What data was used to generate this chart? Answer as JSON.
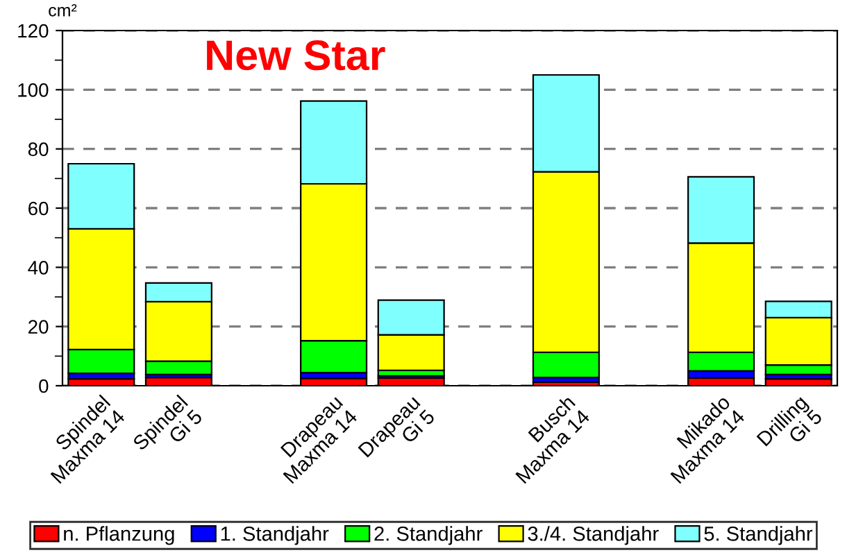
{
  "chart_data": {
    "type": "bar",
    "stacked": true,
    "ylabel": "cm²",
    "annotations": [
      "New Star"
    ],
    "categories": [
      "Spindel\nMaxma 14",
      "Spindel\nGi 5",
      null,
      "Drapeau\nMaxma 14",
      "Drapeau\nGi 5",
      null,
      "Busch\nMaxma 14",
      null,
      "Mikado\nMaxma 14",
      "Drilling\nGi 5"
    ],
    "series": [
      {
        "name": "n. Pflanzung",
        "color": "#ff0000",
        "values": [
          2.3,
          2.8,
          null,
          2.5,
          2.6,
          null,
          1.2,
          null,
          2.6,
          2.3
        ]
      },
      {
        "name": "1. Standjahr",
        "color": "#0000ff",
        "values": [
          1.9,
          1.0,
          null,
          1.9,
          0.7,
          null,
          1.6,
          null,
          2.4,
          1.5
        ]
      },
      {
        "name": "2. Standjahr",
        "color": "#00ff00",
        "values": [
          8.0,
          4.5,
          null,
          10.8,
          1.9,
          null,
          8.5,
          null,
          6.3,
          3.2
        ]
      },
      {
        "name": "3./4. Standjahr",
        "color": "#ffff00",
        "values": [
          40.8,
          20.1,
          null,
          53.0,
          12.0,
          null,
          61.0,
          null,
          36.9,
          16.0
        ]
      },
      {
        "name": "5. Standjahr",
        "color": "#80ffff",
        "values": [
          22.0,
          6.3,
          null,
          28.0,
          11.7,
          null,
          32.7,
          null,
          22.4,
          5.5
        ]
      }
    ],
    "ylim": [
      0,
      120
    ],
    "yticks": [
      0,
      {
        "value": 10,
        "label": null
      },
      20,
      {
        "value": 30,
        "label": null
      },
      40,
      {
        "value": 50,
        "label": null
      },
      60,
      {
        "value": 70,
        "label": null
      },
      80,
      {
        "value": 90,
        "label": null
      },
      100,
      {
        "value": 110,
        "label": null
      },
      120
    ],
    "grid": "y",
    "legend": "bottom"
  }
}
